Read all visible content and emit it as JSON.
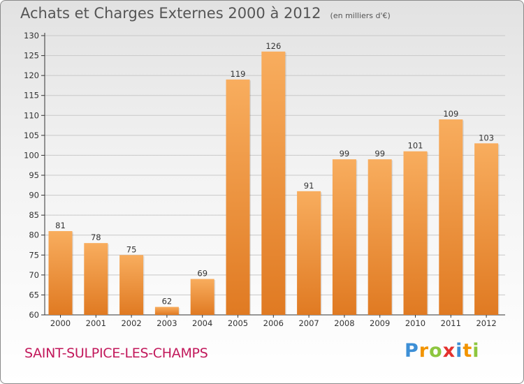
{
  "title": "Achats et Charges Externes 2000 à 2012",
  "unit": "(en milliers d'€)",
  "town": "SAINT-SULPICE-LES-CHAMPS",
  "logo": {
    "letters": [
      "P",
      "r",
      "o",
      "x",
      "i",
      "t",
      "i"
    ],
    "colors": [
      "#3d8fd6",
      "#f29400",
      "#8dc63f",
      "#e4312e",
      "#3d8fd6",
      "#f29400",
      "#8dc63f"
    ]
  },
  "colors": {
    "bar_light": "#f8ad5e",
    "bar_dark": "#e07a22",
    "axis": "#333333",
    "grid": "#c8c8c8"
  },
  "chart_data": {
    "type": "bar",
    "title": "Achats et Charges Externes 2000 à 2012",
    "subtitle": "(en milliers d'€)",
    "categories": [
      "2000",
      "2001",
      "2002",
      "2003",
      "2004",
      "2005",
      "2006",
      "2007",
      "2008",
      "2009",
      "2010",
      "2011",
      "2012"
    ],
    "values": [
      81,
      78,
      75,
      62,
      69,
      119,
      126,
      91,
      99,
      99,
      101,
      109,
      103
    ],
    "xlabel": "",
    "ylabel": "",
    "ylim": [
      60,
      130
    ],
    "yticks": [
      60,
      65,
      70,
      75,
      80,
      85,
      90,
      95,
      100,
      105,
      110,
      115,
      120,
      125,
      130
    ],
    "grid": true,
    "data_labels": true
  }
}
